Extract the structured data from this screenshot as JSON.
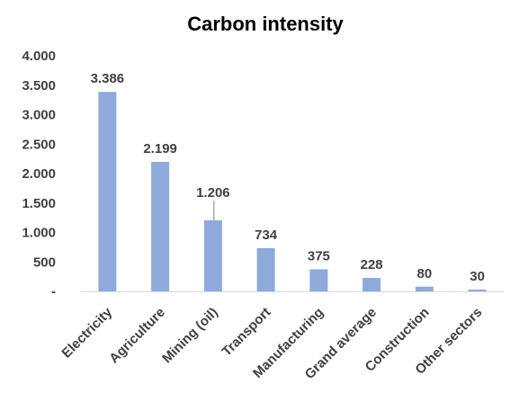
{
  "chart_data": {
    "type": "bar",
    "title": "Carbon intensity",
    "xlabel": "",
    "ylabel": "",
    "categories": [
      "Electricity",
      "Agriculture",
      "Mining (oil)",
      "Transport",
      "Manufacturing",
      "Grand average",
      "Construction",
      "Other sectors"
    ],
    "values": [
      3386,
      2199,
      1206,
      734,
      375,
      228,
      80,
      30
    ],
    "data_labels": [
      "3.386",
      "2.199",
      "1.206",
      "734",
      "375",
      "228",
      "80",
      "30"
    ],
    "yticks": [
      0,
      500,
      1000,
      1500,
      2000,
      2500,
      3000,
      3500,
      4000
    ],
    "ytick_labels": [
      "-",
      "500",
      "1.000",
      "1.500",
      "2.000",
      "2.500",
      "3.000",
      "3.500",
      "4.000"
    ],
    "ylim": [
      0,
      4000
    ],
    "grid": false,
    "legend": "none",
    "bar_color": "#8eaadb",
    "axis_color": "#d9d9d9",
    "text_color": "#404040"
  }
}
